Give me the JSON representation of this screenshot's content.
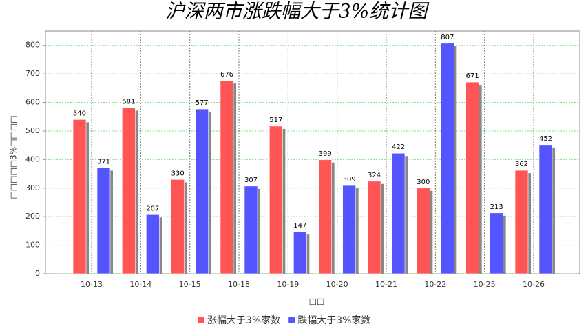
{
  "chart_data": {
    "type": "bar",
    "title": "沪深两市涨跌幅大于3%统计图",
    "x_label": "□□",
    "y_label": "□□□□□3%□□□□",
    "categories": [
      "10-13",
      "10-14",
      "10-15",
      "10-18",
      "10-19",
      "10-20",
      "10-21",
      "10-22",
      "10-25",
      "10-26"
    ],
    "series": [
      {
        "name": "涨幅大于3%家数",
        "color": "#ff5555",
        "values": [
          540,
          581,
          330,
          676,
          517,
          399,
          324,
          300,
          671,
          362
        ]
      },
      {
        "name": "跌幅大于3%家数",
        "color": "#5555ff",
        "values": [
          371,
          207,
          577,
          307,
          147,
          309,
          422,
          807,
          213,
          452
        ]
      }
    ],
    "ylim": [
      0,
      850
    ],
    "yticks": [
      0,
      100,
      200,
      300,
      400,
      500,
      600,
      700,
      800
    ],
    "grid": true,
    "legend": "bottom"
  }
}
